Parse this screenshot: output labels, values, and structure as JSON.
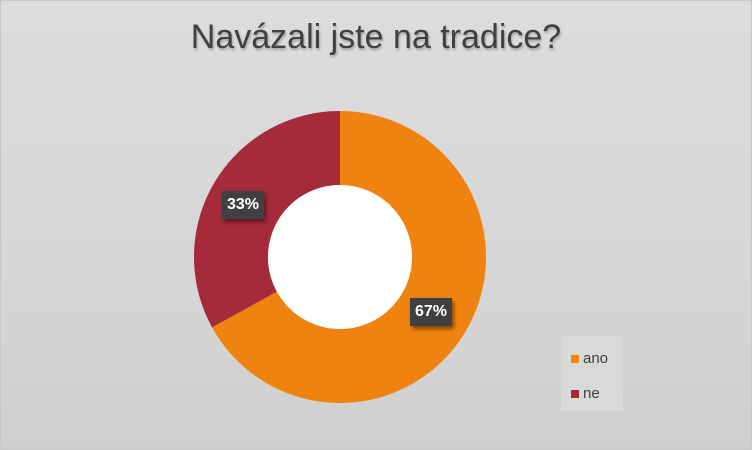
{
  "chart_data": {
    "type": "pie",
    "subtype": "donut",
    "title": "Navázali jste na tradice?",
    "categories": [
      "ano",
      "ne"
    ],
    "values": [
      67,
      33
    ],
    "data_labels": [
      "67%",
      "33%"
    ],
    "colors": [
      "#f0830f",
      "#a52a3a"
    ],
    "legend": {
      "placement": "right",
      "entries": [
        "ano",
        "ne"
      ]
    }
  }
}
